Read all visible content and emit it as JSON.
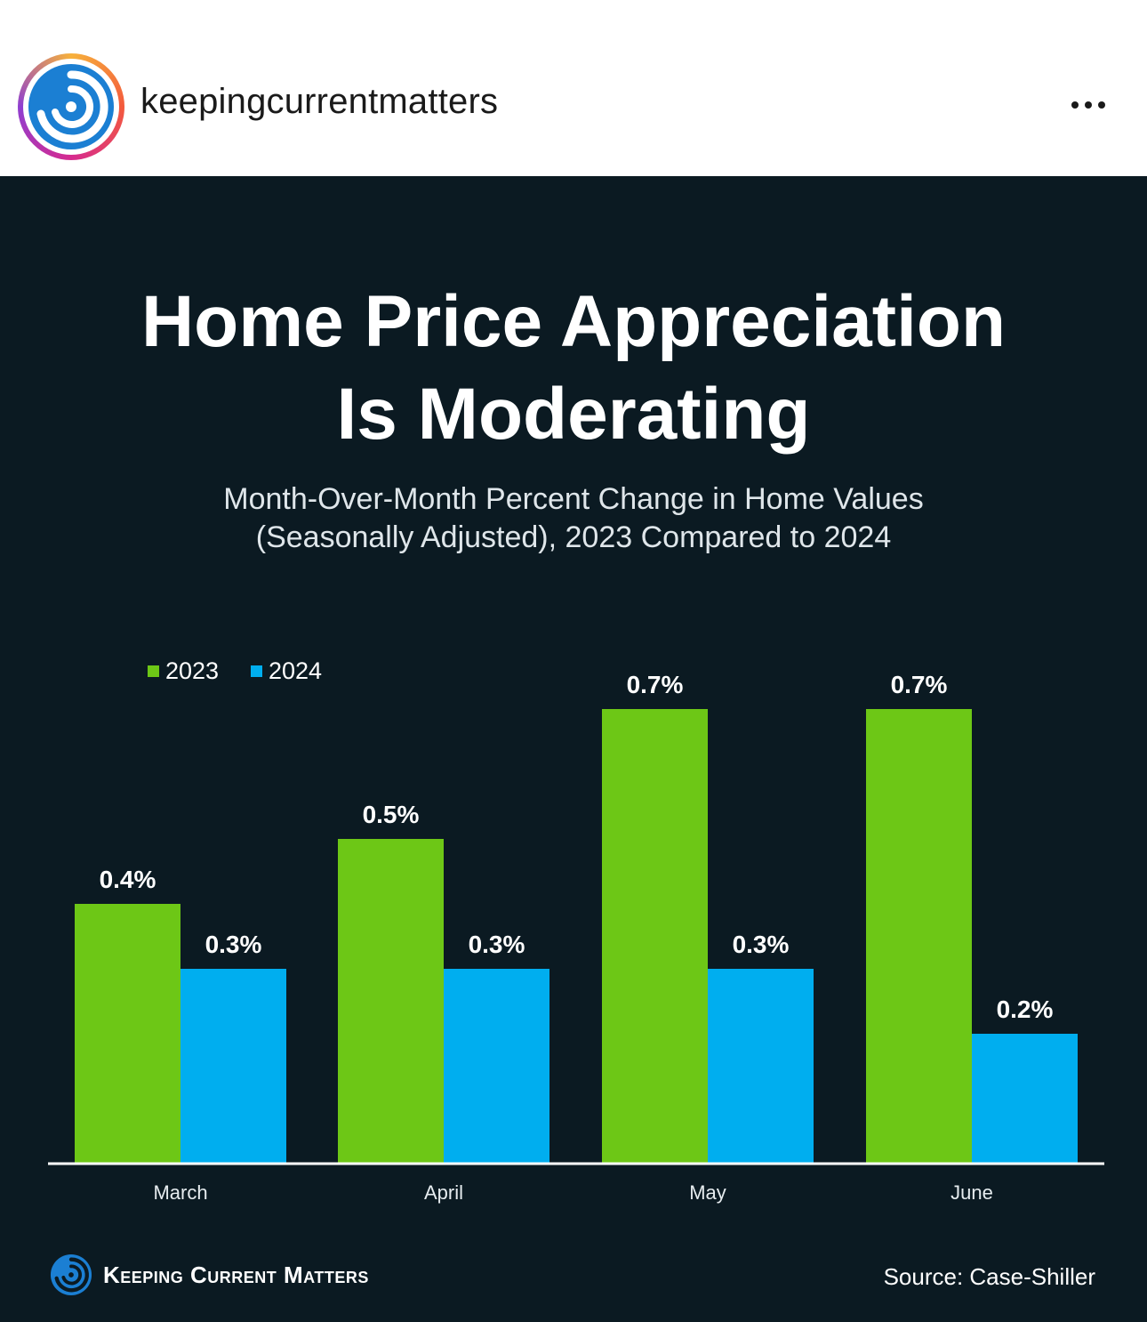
{
  "post": {
    "username": "keepingcurrentmatters"
  },
  "infographic": {
    "title_line1": "Home Price Appreciation",
    "title_line2": "Is Moderating",
    "subtitle_line1": "Month-Over-Month Percent Change in Home Values",
    "subtitle_line2": "(Seasonally Adjusted), 2023 Compared to 2024",
    "brand": "Keeping Current Matters",
    "source": "Source: Case-Shiller"
  },
  "colors": {
    "series_2023": "#6dc716",
    "series_2024": "#00aeef",
    "background": "#0b1a22"
  },
  "chart_data": {
    "type": "bar",
    "title": "Home Price Appreciation Is Moderating",
    "categories": [
      "March",
      "April",
      "May",
      "June"
    ],
    "series": [
      {
        "name": "2023",
        "values": [
          0.4,
          0.5,
          0.7,
          0.7
        ],
        "labels": [
          "0.4%",
          "0.5%",
          "0.7%",
          "0.7%"
        ]
      },
      {
        "name": "2024",
        "values": [
          0.3,
          0.3,
          0.3,
          0.2
        ],
        "labels": [
          "0.3%",
          "0.3%",
          "0.3%",
          "0.2%"
        ]
      }
    ],
    "xlabel": "",
    "ylabel": "",
    "ylim": [
      0,
      0.7
    ],
    "legend": "top-left",
    "grid": false
  }
}
